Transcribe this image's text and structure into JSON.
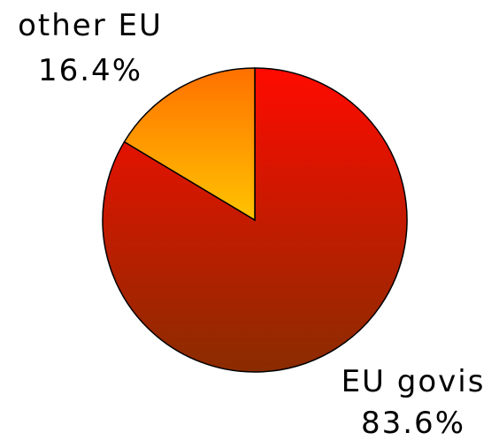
{
  "chart_data": {
    "type": "pie",
    "title": "",
    "slices": [
      {
        "label": "EU govis",
        "value": 83.6,
        "percent_label": "83.6%",
        "color_top": "#ff0a00",
        "color_bottom": "#8a2c00"
      },
      {
        "label": "other EU",
        "value": 16.4,
        "percent_label": "16.4%",
        "color_top": "#ff7000",
        "color_bottom": "#ffc400"
      }
    ],
    "legend": "none",
    "labels_outside": true
  }
}
